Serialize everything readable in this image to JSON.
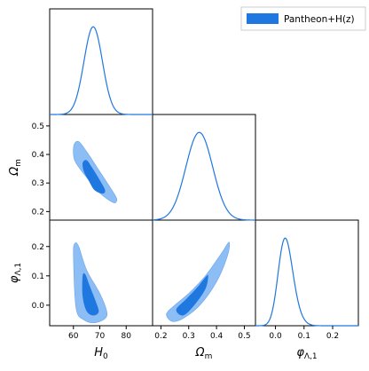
{
  "chart_data": {
    "type": "corner-plot",
    "legend": {
      "label": "Pantheon+H(z)",
      "color": "#1f77e0",
      "placement": "top-right"
    },
    "parameters": [
      {
        "key": "H0",
        "label_main": "H",
        "label_sub": "0",
        "range": [
          51,
          90
        ],
        "ticks": [
          60,
          70,
          80
        ]
      },
      {
        "key": "Om",
        "label_main": "Ω",
        "label_sub": "m",
        "range": [
          0.17,
          0.54
        ],
        "ticks": [
          0.2,
          0.3,
          0.4,
          0.5
        ]
      },
      {
        "key": "phi",
        "label_main": "φ",
        "label_sub": "Λ,1",
        "range": [
          -0.07,
          0.29
        ],
        "ticks": [
          0.0,
          0.1,
          0.2
        ]
      }
    ],
    "marginals": [
      {
        "param": "H0",
        "mean": 67.5,
        "sigma": 3.5
      },
      {
        "param": "Om",
        "mean": 0.325,
        "sigma": 0.05,
        "skew": 0.35
      },
      {
        "param": "phi",
        "mean": 0.015,
        "sigma": 0.035,
        "skew": 1.4
      }
    ],
    "contours_2d": [
      {
        "x": "H0",
        "y": "Om",
        "outer": [
          [
            60,
            0.4
          ],
          [
            60.3,
            0.435
          ],
          [
            62,
            0.445
          ],
          [
            65,
            0.41
          ],
          [
            70,
            0.34
          ],
          [
            75.6,
            0.26
          ],
          [
            76.4,
            0.238
          ],
          [
            75,
            0.232
          ],
          [
            70,
            0.265
          ],
          [
            65,
            0.32
          ],
          [
            61,
            0.37
          ]
        ],
        "inner": [
          [
            63.5,
            0.37
          ],
          [
            65,
            0.38
          ],
          [
            67,
            0.355
          ],
          [
            70,
            0.31
          ],
          [
            72,
            0.275
          ],
          [
            71,
            0.263
          ],
          [
            68,
            0.275
          ],
          [
            66,
            0.305
          ],
          [
            64,
            0.34
          ]
        ]
      },
      {
        "x": "H0",
        "y": "phi",
        "outer": [
          [
            60,
            0.17
          ],
          [
            60.5,
            0.21
          ],
          [
            62,
            0.2
          ],
          [
            65,
            0.12
          ],
          [
            70,
            0.04
          ],
          [
            72.6,
            -0.02
          ],
          [
            72,
            -0.045
          ],
          [
            68,
            -0.06
          ],
          [
            64,
            -0.05
          ],
          [
            61,
            -0.01
          ]
        ],
        "inner": [
          [
            63.5,
            0.1
          ],
          [
            64.5,
            0.105
          ],
          [
            66,
            0.07
          ],
          [
            69,
            0.0
          ],
          [
            69.5,
            -0.025
          ],
          [
            67.5,
            -0.035
          ],
          [
            65,
            -0.02
          ],
          [
            63.5,
            0.03
          ]
        ]
      },
      {
        "x": "Om",
        "y": "phi",
        "outer": [
          [
            0.22,
            -0.03
          ],
          [
            0.25,
            0.0
          ],
          [
            0.3,
            0.04
          ],
          [
            0.36,
            0.1
          ],
          [
            0.42,
            0.18
          ],
          [
            0.445,
            0.215
          ],
          [
            0.44,
            0.17
          ],
          [
            0.4,
            0.08
          ],
          [
            0.34,
            0.0
          ],
          [
            0.28,
            -0.045
          ],
          [
            0.24,
            -0.055
          ]
        ],
        "inner": [
          [
            0.255,
            -0.015
          ],
          [
            0.29,
            0.02
          ],
          [
            0.33,
            0.06
          ],
          [
            0.36,
            0.095
          ],
          [
            0.37,
            0.1
          ],
          [
            0.36,
            0.055
          ],
          [
            0.32,
            0.0
          ],
          [
            0.28,
            -0.035
          ]
        ]
      }
    ]
  }
}
